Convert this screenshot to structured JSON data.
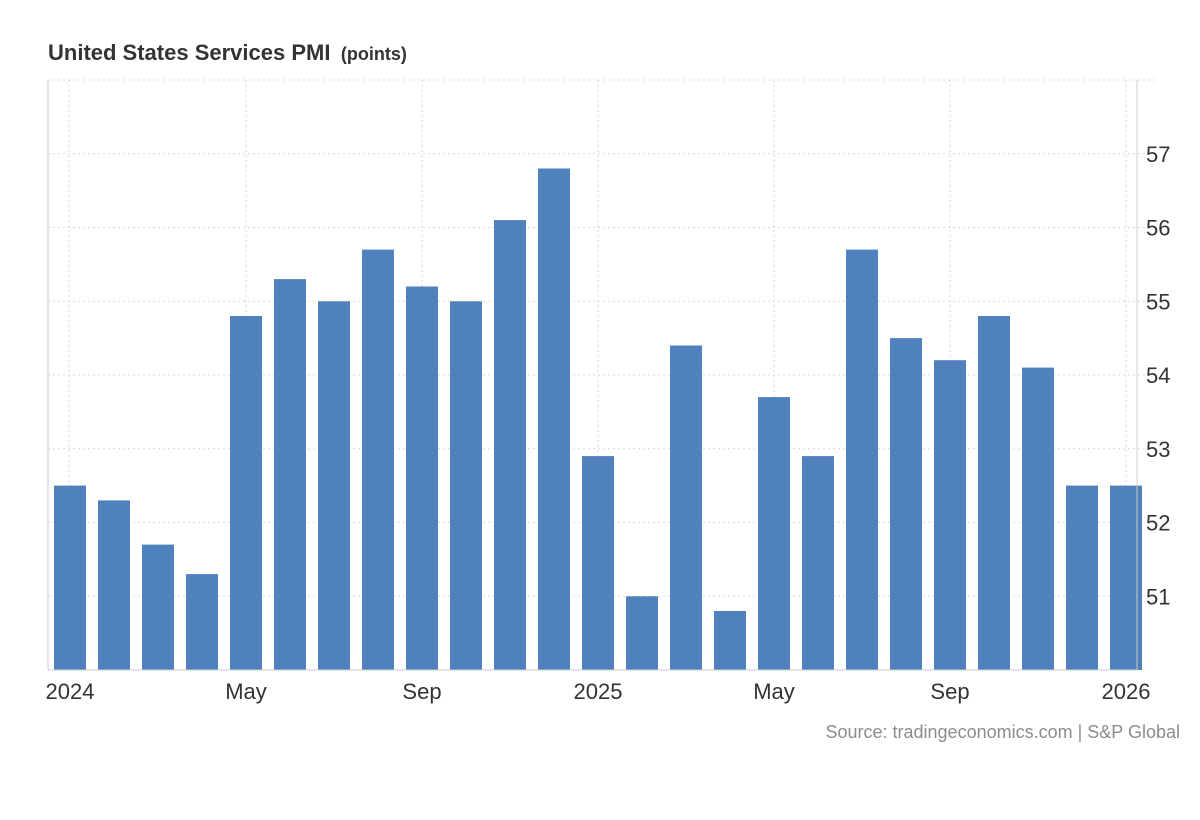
{
  "chart_data": {
    "type": "bar",
    "title": "United States Services PMI",
    "unit_label": "(points)",
    "source": "Source: tradingeconomics.com | S&P Global",
    "bar_color": "#4f81bd",
    "categories": [
      "2024-01",
      "2024-02",
      "2024-03",
      "2024-04",
      "2024-05",
      "2024-06",
      "2024-07",
      "2024-08",
      "2024-09",
      "2024-10",
      "2024-11",
      "2024-12",
      "2025-01",
      "2025-02",
      "2025-03",
      "2025-04",
      "2025-05",
      "2025-06",
      "2025-07",
      "2025-08",
      "2025-09",
      "2025-10",
      "2025-11",
      "2025-12",
      "2026-01"
    ],
    "values": [
      52.5,
      52.3,
      51.7,
      51.3,
      54.8,
      55.3,
      55.0,
      55.7,
      55.2,
      55.0,
      56.1,
      56.8,
      52.9,
      51.0,
      54.4,
      50.8,
      53.7,
      52.9,
      55.7,
      54.5,
      54.2,
      54.8,
      54.1,
      52.5,
      52.5
    ],
    "x_tick_labels": [
      {
        "label": "2024",
        "index": 0
      },
      {
        "label": "May",
        "index": 4
      },
      {
        "label": "Sep",
        "index": 8
      },
      {
        "label": "2025",
        "index": 12
      },
      {
        "label": "May",
        "index": 16
      },
      {
        "label": "Sep",
        "index": 20
      },
      {
        "label": "2026",
        "index": 24
      }
    ],
    "y_ticks": [
      51,
      52,
      53,
      54,
      55,
      56,
      57
    ],
    "ylim": [
      50,
      58
    ],
    "xlabel": "",
    "ylabel": "",
    "grid": true,
    "y_axis_side": "right"
  }
}
